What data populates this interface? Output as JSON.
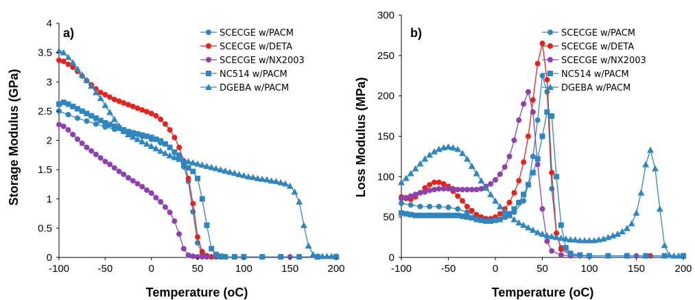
{
  "chart_data": [
    {
      "type": "line",
      "panel_label": "a)",
      "xlabel": "Temperature (oC)",
      "ylabel": "Storage Modulus (GPa)",
      "xlim": [
        -100,
        200
      ],
      "ylim": [
        0,
        4
      ],
      "xticks": [
        "-100",
        "-50",
        "0",
        "50",
        "100",
        "150",
        "200"
      ],
      "yticks": [
        "0",
        "0.5",
        "1",
        "1.5",
        "2",
        "2.5",
        "3",
        "3.5",
        "4"
      ],
      "legend_position": "top-right",
      "series": [
        {
          "name": "SCECGE w/PACM",
          "color": "#2E86C1",
          "marker": "circle",
          "x": [
            -100,
            -90,
            -80,
            -70,
            -60,
            -50,
            -40,
            -30,
            -20,
            -10,
            0,
            10,
            20,
            30,
            35,
            40,
            45,
            50,
            55,
            60,
            65,
            70,
            80,
            90,
            100,
            120,
            140,
            160,
            180,
            200
          ],
          "y": [
            2.5,
            2.44,
            2.38,
            2.33,
            2.28,
            2.23,
            2.19,
            2.15,
            2.11,
            2.07,
            2.02,
            1.96,
            1.88,
            1.75,
            1.55,
            1.3,
            0.78,
            0.25,
            0.06,
            0.02,
            0.01,
            0.01,
            0.01,
            0.01,
            0.01,
            0.01,
            0.01,
            0.01,
            0.01,
            0.01
          ]
        },
        {
          "name": "SCECGE w/DETA",
          "color": "#E8221B",
          "marker": "circle",
          "x": [
            -100,
            -95,
            -90,
            -85,
            -80,
            -75,
            -70,
            -65,
            -60,
            -55,
            -50,
            -45,
            -40,
            -35,
            -30,
            -25,
            -20,
            -15,
            -10,
            -5,
            0,
            5,
            10,
            15,
            20,
            25,
            30,
            35,
            40,
            45,
            50,
            55,
            60,
            65,
            70,
            75,
            80,
            90,
            100,
            120,
            140,
            160,
            180,
            200
          ],
          "y": [
            3.37,
            3.35,
            3.3,
            3.25,
            3.18,
            3.1,
            3.02,
            2.95,
            2.88,
            2.82,
            2.78,
            2.74,
            2.7,
            2.67,
            2.64,
            2.61,
            2.58,
            2.55,
            2.52,
            2.49,
            2.46,
            2.42,
            2.36,
            2.28,
            2.18,
            2.05,
            1.88,
            1.65,
            1.35,
            0.92,
            0.35,
            0.1,
            0.03,
            0.01,
            0.01,
            0.01,
            0.01,
            0.01,
            0.01,
            0.01,
            0.01,
            0.01,
            0.01,
            0.01
          ]
        },
        {
          "name": "SCECGE w/NX2003",
          "color": "#8E3FB0",
          "marker": "circle",
          "x": [
            -100,
            -95,
            -90,
            -85,
            -80,
            -75,
            -70,
            -65,
            -60,
            -55,
            -50,
            -45,
            -40,
            -35,
            -30,
            -25,
            -20,
            -15,
            -10,
            -5,
            0,
            5,
            10,
            15,
            20,
            25,
            30,
            35,
            40,
            45,
            50,
            55,
            60,
            70,
            80,
            100,
            150,
            200
          ],
          "y": [
            2.27,
            2.24,
            2.18,
            2.1,
            2.02,
            1.95,
            1.88,
            1.82,
            1.76,
            1.7,
            1.64,
            1.59,
            1.53,
            1.47,
            1.42,
            1.36,
            1.31,
            1.26,
            1.21,
            1.15,
            1.1,
            1.02,
            0.95,
            0.86,
            0.77,
            0.62,
            0.4,
            0.15,
            0.04,
            0.02,
            0.01,
            0.01,
            0.01,
            0.01,
            0.01,
            0.01,
            0.01,
            0.01
          ]
        },
        {
          "name": "NC514 w/PACM",
          "color": "#2E86C1",
          "marker": "square",
          "x": [
            -100,
            -95,
            -90,
            -85,
            -80,
            -75,
            -70,
            -65,
            -60,
            -55,
            -50,
            -45,
            -40,
            -35,
            -30,
            -25,
            -20,
            -15,
            -10,
            -5,
            0,
            5,
            10,
            15,
            20,
            25,
            30,
            35,
            40,
            45,
            50,
            55,
            60,
            65,
            70,
            75,
            80,
            90,
            100,
            120,
            140,
            160,
            180,
            200
          ],
          "y": [
            2.62,
            2.65,
            2.62,
            2.58,
            2.54,
            2.5,
            2.46,
            2.42,
            2.38,
            2.34,
            2.3,
            2.27,
            2.24,
            2.21,
            2.18,
            2.15,
            2.13,
            2.11,
            2.09,
            2.07,
            2.05,
            2.02,
            1.99,
            1.94,
            1.88,
            1.8,
            1.72,
            1.6,
            1.53,
            1.47,
            1.35,
            1.0,
            0.55,
            0.15,
            0.05,
            0.02,
            0.01,
            0.01,
            0.01,
            0.01,
            0.01,
            0.01,
            0.01,
            0.01
          ]
        },
        {
          "name": "DGEBA w/PACM",
          "color": "#2E86C1",
          "marker": "triangle",
          "x": [
            -100,
            -95,
            -90,
            -85,
            -80,
            -75,
            -70,
            -65,
            -60,
            -55,
            -50,
            -45,
            -40,
            -35,
            -30,
            -25,
            -20,
            -15,
            -10,
            -5,
            0,
            5,
            10,
            15,
            20,
            25,
            30,
            35,
            40,
            45,
            50,
            55,
            60,
            65,
            70,
            75,
            80,
            85,
            90,
            95,
            100,
            105,
            110,
            115,
            120,
            125,
            130,
            135,
            140,
            145,
            150,
            155,
            160,
            165,
            170,
            175,
            180,
            185,
            190,
            195,
            200
          ],
          "y": [
            3.53,
            3.5,
            3.42,
            3.33,
            3.22,
            3.12,
            3.03,
            2.93,
            2.82,
            2.72,
            2.6,
            2.48,
            2.36,
            2.25,
            2.16,
            2.1,
            2.06,
            2.02,
            1.98,
            1.94,
            1.9,
            1.86,
            1.82,
            1.78,
            1.74,
            1.71,
            1.68,
            1.66,
            1.64,
            1.62,
            1.6,
            1.58,
            1.56,
            1.54,
            1.52,
            1.5,
            1.48,
            1.46,
            1.44,
            1.42,
            1.4,
            1.38,
            1.37,
            1.35,
            1.34,
            1.33,
            1.31,
            1.3,
            1.28,
            1.26,
            1.22,
            1.12,
            0.95,
            0.55,
            0.2,
            0.05,
            0.02,
            0.02,
            0.02,
            0.02,
            0.02
          ]
        }
      ]
    },
    {
      "type": "line",
      "panel_label": "b)",
      "xlabel": "Temperature (oC)",
      "ylabel": "Loss Modulus (MPa)",
      "xlim": [
        -100,
        200
      ],
      "ylim": [
        0,
        300
      ],
      "xticks": [
        "-100",
        "-50",
        "0",
        "50",
        "100",
        "150",
        "200"
      ],
      "yticks": [
        "0",
        "50",
        "100",
        "150",
        "200",
        "250",
        "300"
      ],
      "legend_position": "top-right",
      "series": [
        {
          "name": "SCECGE w/PACM",
          "color": "#2E86C1",
          "marker": "circle",
          "x": [
            -100,
            -90,
            -80,
            -70,
            -60,
            -50,
            -40,
            -30,
            -20,
            -10,
            0,
            10,
            20,
            30,
            35,
            40,
            45,
            50,
            55,
            60,
            65,
            70,
            80,
            90,
            100,
            120,
            140,
            160,
            180,
            200
          ],
          "y": [
            67,
            65,
            63,
            63,
            63,
            62,
            60,
            56,
            52,
            48,
            48,
            50,
            56,
            70,
            90,
            125,
            170,
            225,
            205,
            85,
            30,
            12,
            5,
            3,
            2,
            2,
            2,
            2,
            2,
            2
          ]
        },
        {
          "name": "SCECGE w/DETA",
          "color": "#E8221B",
          "marker": "circle",
          "x": [
            -100,
            -95,
            -90,
            -85,
            -80,
            -75,
            -70,
            -65,
            -60,
            -55,
            -50,
            -45,
            -40,
            -35,
            -30,
            -25,
            -20,
            -15,
            -10,
            -5,
            0,
            5,
            10,
            15,
            20,
            25,
            30,
            35,
            40,
            45,
            50,
            55,
            60,
            65,
            70,
            80,
            90,
            100,
            160,
            165,
            200
          ],
          "y": [
            75,
            73,
            72,
            75,
            80,
            86,
            90,
            93,
            93,
            91,
            88,
            82,
            76,
            70,
            63,
            58,
            53,
            50,
            48,
            48,
            50,
            54,
            60,
            68,
            80,
            95,
            118,
            150,
            195,
            240,
            265,
            220,
            105,
            30,
            10,
            3,
            2,
            2,
            2,
            2,
            2
          ]
        },
        {
          "name": "SCECGE w/NX2003",
          "color": "#8E3FB0",
          "marker": "circle",
          "x": [
            -100,
            -95,
            -90,
            -85,
            -80,
            -75,
            -70,
            -65,
            -60,
            -55,
            -50,
            -45,
            -40,
            -35,
            -30,
            -25,
            -20,
            -15,
            -10,
            -5,
            0,
            5,
            10,
            15,
            20,
            25,
            30,
            35,
            40,
            45,
            50,
            55,
            60,
            70,
            80,
            100,
            150,
            200
          ],
          "y": [
            73,
            74,
            76,
            78,
            80,
            81,
            83,
            84,
            85,
            85,
            85,
            85,
            84,
            84,
            84,
            84,
            84,
            85,
            88,
            91,
            96,
            103,
            112,
            125,
            145,
            170,
            190,
            205,
            180,
            115,
            60,
            20,
            8,
            3,
            2,
            2,
            2,
            2
          ]
        },
        {
          "name": "NC514 w/PACM",
          "color": "#2E86C1",
          "marker": "square",
          "x": [
            -100,
            -95,
            -90,
            -85,
            -80,
            -75,
            -70,
            -65,
            -60,
            -55,
            -50,
            -45,
            -40,
            -35,
            -30,
            -25,
            -20,
            -15,
            -10,
            -5,
            0,
            5,
            10,
            15,
            20,
            25,
            30,
            35,
            40,
            45,
            50,
            55,
            60,
            65,
            70,
            75,
            80,
            90,
            100,
            120,
            140,
            160,
            180,
            200
          ],
          "y": [
            55,
            54,
            53,
            52,
            52,
            52,
            52,
            52,
            52,
            52,
            52,
            52,
            52,
            51,
            50,
            49,
            47,
            46,
            45,
            45,
            46,
            47,
            50,
            54,
            60,
            68,
            78,
            90,
            105,
            122,
            150,
            180,
            175,
            100,
            40,
            12,
            5,
            3,
            2,
            2,
            2,
            2,
            2,
            2
          ]
        },
        {
          "name": "DGEBA w/PACM",
          "color": "#2E86C1",
          "marker": "triangle",
          "x": [
            -100,
            -95,
            -90,
            -85,
            -80,
            -75,
            -70,
            -65,
            -60,
            -55,
            -50,
            -45,
            -40,
            -35,
            -30,
            -25,
            -20,
            -15,
            -10,
            -5,
            0,
            5,
            10,
            15,
            20,
            25,
            30,
            35,
            40,
            45,
            50,
            55,
            60,
            65,
            70,
            75,
            80,
            85,
            90,
            95,
            100,
            105,
            110,
            115,
            120,
            125,
            130,
            135,
            140,
            145,
            150,
            155,
            160,
            165,
            170,
            175,
            180,
            185,
            190,
            195,
            200
          ],
          "y": [
            93,
            98,
            104,
            110,
            116,
            122,
            127,
            131,
            134,
            136,
            137,
            136,
            134,
            129,
            122,
            113,
            104,
            95,
            86,
            78,
            70,
            63,
            57,
            52,
            47,
            43,
            40,
            37,
            34,
            31,
            29,
            27,
            26,
            25,
            24,
            23,
            22,
            22,
            21,
            21,
            21,
            21,
            22,
            23,
            25,
            27,
            29,
            32,
            36,
            42,
            55,
            80,
            115,
            133,
            110,
            60,
            15,
            3,
            2,
            2,
            2
          ]
        }
      ]
    }
  ]
}
